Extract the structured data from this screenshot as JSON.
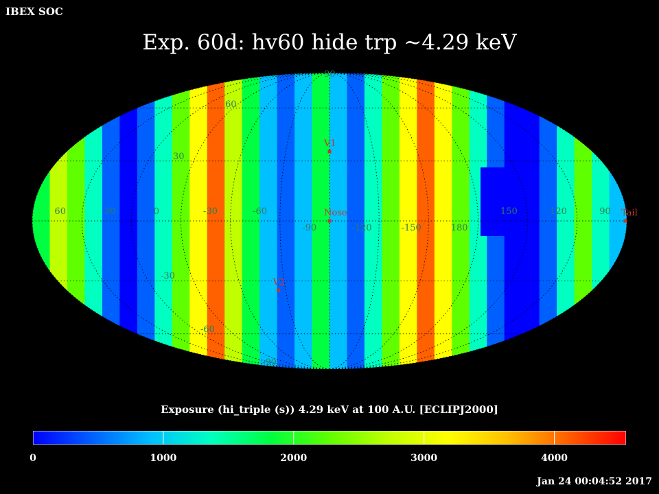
{
  "header": {
    "org": "IBEX SOC"
  },
  "title": "Exp.   60d: hv60 hide trp ~4.29 keV",
  "map": {
    "projection": "Mollweide (ecliptic J2000)",
    "lon_labels": [
      "60",
      "30",
      "0",
      "-30",
      "-60",
      "-90",
      "-120",
      "-150",
      "180",
      "150",
      "120",
      "90"
    ],
    "lat_labels": [
      "90",
      "60",
      "30",
      "-30",
      "-60",
      "-90"
    ],
    "markers": [
      {
        "name": "V1",
        "lon": -105,
        "lat": 35
      },
      {
        "name": "Nose",
        "lon": -105,
        "lat": 0
      },
      {
        "name": "V2",
        "lon": -70,
        "lat": -35
      },
      {
        "name": "Tail",
        "lon": 75,
        "lat": 0
      }
    ],
    "marker_color": "#c0392b"
  },
  "colorbar": {
    "label": "Exposure (hi_triple (s))  4.29 keV at 100 A.U. [ECLIPJ2000]",
    "ticks": [
      "0",
      "1000",
      "2000",
      "3000",
      "4000"
    ],
    "min": 0,
    "max": 4550,
    "colors": [
      "#0000ff",
      "#0060ff",
      "#00c0ff",
      "#00ffc0",
      "#00ff40",
      "#60ff00",
      "#c0ff00",
      "#ffff00",
      "#ffc000",
      "#ff6000",
      "#ff0000"
    ]
  },
  "timestamp": "Jan 24 00:04:52 2017"
}
